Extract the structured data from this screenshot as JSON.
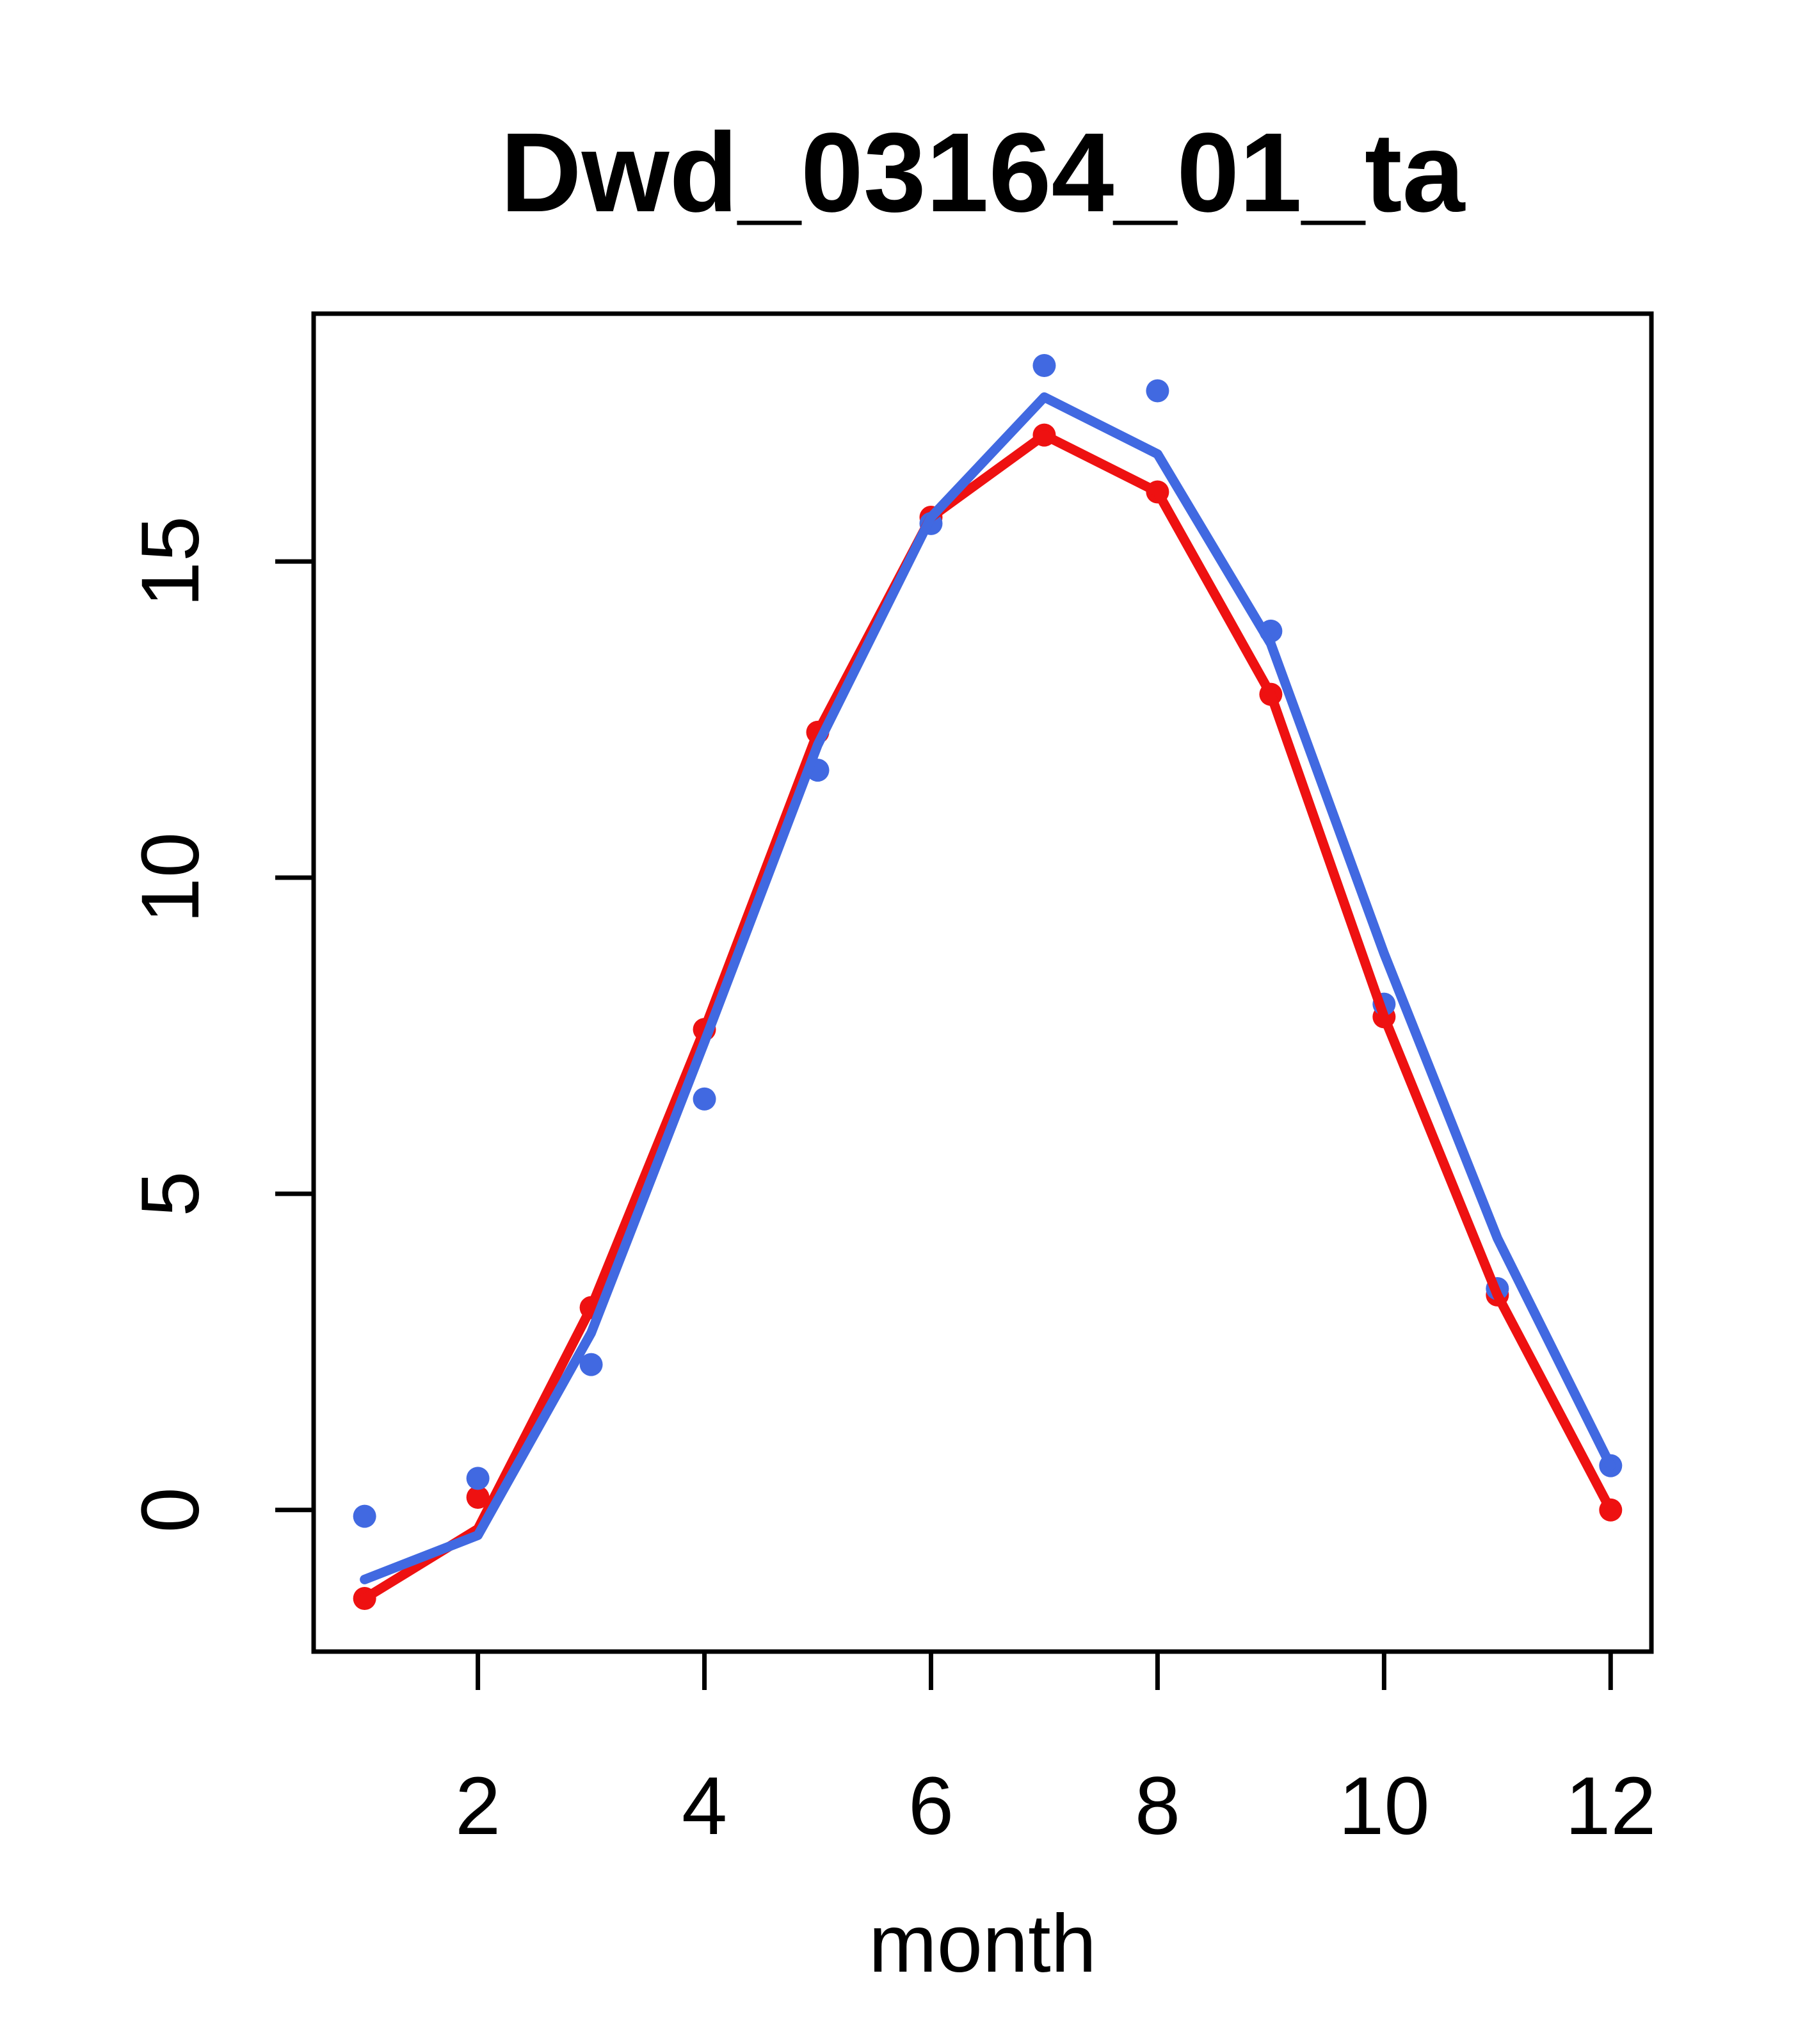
{
  "chart_data": {
    "type": "line",
    "title": "Dwd_03164_01_ta",
    "xlabel": "month",
    "ylabel": "",
    "x": [
      1,
      2,
      3,
      4,
      5,
      6,
      7,
      8,
      9,
      10,
      11,
      12
    ],
    "x_ticks": [
      2,
      4,
      6,
      8,
      10,
      12
    ],
    "y_ticks": [
      0,
      5,
      10,
      15
    ],
    "xlim": [
      0.55,
      12.36
    ],
    "ylim": [
      -2.24,
      18.92
    ],
    "grid": false,
    "legend": false,
    "background": "#ffffff",
    "axis_color": "#000000",
    "series": [
      {
        "name": "red-points",
        "kind": "scatter",
        "color": "#EE1111",
        "values": [
          -1.4,
          0.2,
          3.2,
          7.6,
          12.3,
          15.7,
          17.0,
          16.1,
          12.9,
          7.8,
          3.4,
          0.0
        ]
      },
      {
        "name": "blue-points",
        "kind": "scatter",
        "color": "#4169E1",
        "values": [
          -0.1,
          0.5,
          2.3,
          6.5,
          11.7,
          15.6,
          18.1,
          17.7,
          13.9,
          8.0,
          3.5,
          0.7
        ]
      },
      {
        "name": "red-line",
        "kind": "line",
        "color": "#EE1111",
        "values": [
          -1.4,
          -0.3,
          3.2,
          7.6,
          12.3,
          15.7,
          17.0,
          16.1,
          12.9,
          7.8,
          3.4,
          0.0
        ]
      },
      {
        "name": "blue-line",
        "kind": "line",
        "color": "#4169E1",
        "values": [
          -1.1,
          -0.4,
          2.8,
          7.4,
          12.1,
          15.7,
          17.6,
          16.7,
          13.7,
          8.8,
          4.3,
          0.7
        ]
      }
    ]
  }
}
